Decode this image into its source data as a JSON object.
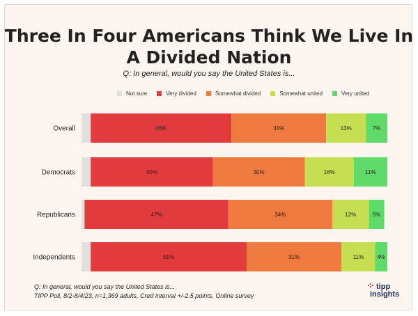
{
  "title": "Three In Four Americans Think We Live In A Divided Nation",
  "subtitle": "Q: In general, would you say the United States is...",
  "footer": {
    "line1": "Q:  In general, would you say the United States is...",
    "line2": "TIPP Poll, 8/2-8/4/23, n=1,369 adults, Cred interval +/-2.5 points, Online survey"
  },
  "logo": {
    "text_top": "tipp",
    "text_bottom": "insights",
    "accent": "#e8403f"
  },
  "chart_data": {
    "type": "bar",
    "orientation": "horizontal",
    "stacked": true,
    "categories": [
      "Overall",
      "Democrats",
      "Republicans",
      "Independents"
    ],
    "series": [
      {
        "name": "Not sure",
        "color": "#e0e0e0",
        "values": [
          3,
          3,
          1,
          3
        ],
        "labels": [
          "",
          "",
          "",
          ""
        ]
      },
      {
        "name": "Very divided",
        "color": "#e23b3e",
        "values": [
          46,
          40,
          47,
          51
        ],
        "labels": [
          "46%",
          "40%",
          "47%",
          "51%"
        ]
      },
      {
        "name": "Somewhat divided",
        "color": "#ee7a3f",
        "values": [
          31,
          30,
          34,
          31
        ],
        "labels": [
          "31%",
          "30%",
          "34%",
          "31%"
        ]
      },
      {
        "name": "Somewhat united",
        "color": "#c6de51",
        "values": [
          13,
          16,
          12,
          11
        ],
        "labels": [
          "13%",
          "16%",
          "12%",
          "11%"
        ]
      },
      {
        "name": "Very united",
        "color": "#5fdb6a",
        "values": [
          7,
          11,
          5,
          4
        ],
        "labels": [
          "7%",
          "11%",
          "5%",
          "4%"
        ]
      }
    ],
    "xlim": [
      0,
      100
    ],
    "legend": "top-center",
    "grid": false
  }
}
